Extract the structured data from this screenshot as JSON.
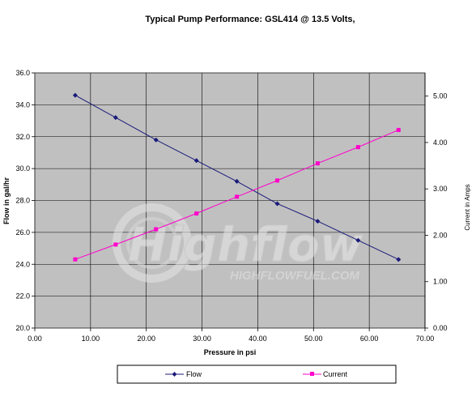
{
  "chart_data": {
    "type": "line",
    "title": "Typical Pump Performance:  GSL414 @ 13.5 Volts,",
    "xlabel": "Pressure in psi",
    "ylabel_left": "Flow in gal/hr",
    "ylabel_right": "Current in Amps",
    "xlim": [
      0,
      70
    ],
    "ylim_left": [
      20,
      36
    ],
    "ylim_right": [
      0,
      5.5
    ],
    "grid": true,
    "legend_placement": "bottom",
    "x_ticks": [
      "0.00",
      "10.00",
      "20.00",
      "30.00",
      "40.00",
      "50.00",
      "60.00",
      "70.00"
    ],
    "y_left_ticks": [
      "20.0",
      "22.0",
      "24.0",
      "26.0",
      "28.0",
      "30.0",
      "32.0",
      "34.0",
      "36.0"
    ],
    "y_right_ticks": [
      "0.00",
      "1.00",
      "2.00",
      "3.00",
      "4.00",
      "5.00"
    ],
    "series": [
      {
        "name": "Flow",
        "axis": "left",
        "color": "#1a1a7a",
        "marker": "diamond",
        "x": [
          7.25,
          14.5,
          21.75,
          29,
          36.25,
          43.5,
          50.75,
          58,
          65.25
        ],
        "values": [
          34.6,
          33.2,
          31.8,
          30.5,
          29.2,
          27.8,
          26.7,
          25.5,
          24.3
        ]
      },
      {
        "name": "Current",
        "axis": "right",
        "color": "#ff00cc",
        "marker": "square",
        "x": [
          7.25,
          14.5,
          21.75,
          29,
          36.25,
          43.5,
          50.75,
          58,
          65.25
        ],
        "values": [
          1.48,
          1.8,
          2.13,
          2.47,
          2.83,
          3.18,
          3.55,
          3.9,
          4.27
        ]
      }
    ]
  },
  "watermark": {
    "logo_text": "Highflow",
    "url_text": "HIGHFLOWFUEL.COM"
  },
  "colors": {
    "plot_bg": "#c0c0c0",
    "grid": "#000000"
  }
}
